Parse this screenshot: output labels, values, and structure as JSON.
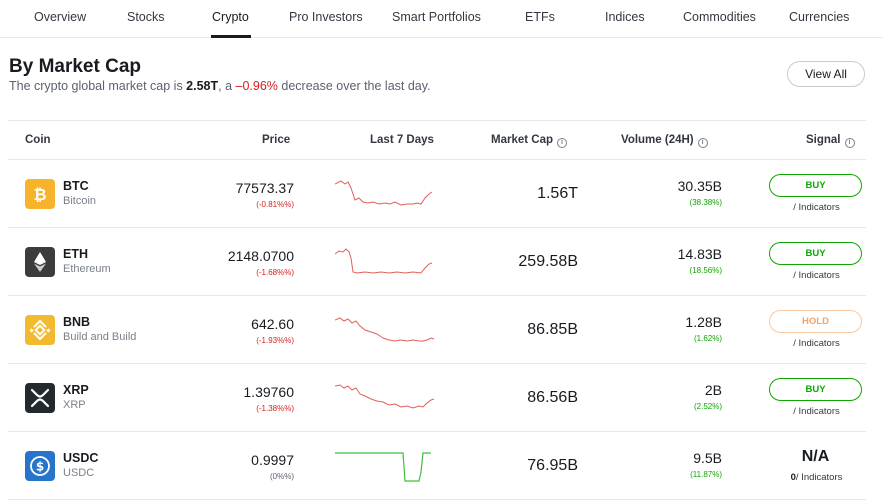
{
  "nav": {
    "items": [
      "Overview",
      "Stocks",
      "Crypto",
      "Pro Investors",
      "Smart Portfolios",
      "ETFs",
      "Indices",
      "Commodities",
      "Currencies"
    ],
    "active": "Crypto"
  },
  "header": {
    "title": "By Market Cap",
    "subtitle_pre": "The crypto global market cap is ",
    "subtitle_value": "2.58T",
    "subtitle_mid": ", a ",
    "subtitle_change": "–0.96%",
    "subtitle_post": " decrease over the last day.",
    "view_all": "View All"
  },
  "table": {
    "columns": {
      "coin": "Coin",
      "price": "Price",
      "last7": "Last 7 Days",
      "mcap": "Market Cap",
      "volume": "Volume (24H)",
      "signal": "Signal"
    },
    "rows": [
      {
        "symbol": "BTC",
        "name": "Bitcoin",
        "price": "77573.37",
        "price_change": "(-0.81%%)",
        "market_cap": "1.56T",
        "volume": "30.35B",
        "volume_change": "(38.38%)",
        "signal": "BUY",
        "indicators_count": "",
        "indicators_label": "/ Indicators",
        "icon": "bitcoin-icon",
        "icon_color": "#f7b32b",
        "trend": "down"
      },
      {
        "symbol": "ETH",
        "name": "Ethereum",
        "price": "2148.0700",
        "price_change": "(-1.68%%)",
        "market_cap": "259.58B",
        "volume": "14.83B",
        "volume_change": "(18.56%)",
        "signal": "BUY",
        "indicators_count": "",
        "indicators_label": "/ Indicators",
        "icon": "ethereum-icon",
        "icon_color": "#3c3c3d",
        "trend": "down"
      },
      {
        "symbol": "BNB",
        "name": "Build and Build",
        "price": "642.60",
        "price_change": "(-1.93%%)",
        "market_cap": "86.85B",
        "volume": "1.28B",
        "volume_change": "(1.62%)",
        "signal": "HOLD",
        "indicators_count": "",
        "indicators_label": "/ Indicators",
        "icon": "bnb-icon",
        "icon_color": "#f3ba2f",
        "trend": "down"
      },
      {
        "symbol": "XRP",
        "name": "XRP",
        "price": "1.39760",
        "price_change": "(-1.38%%)",
        "market_cap": "86.56B",
        "volume": "2B",
        "volume_change": "(2.52%)",
        "signal": "BUY",
        "indicators_count": "",
        "indicators_label": "/ Indicators",
        "icon": "xrp-icon",
        "icon_color": "#23292f",
        "trend": "down"
      },
      {
        "symbol": "USDC",
        "name": "USDC",
        "price": "0.9997",
        "price_change": "(0%%)",
        "market_cap": "76.95B",
        "volume": "9.5B",
        "volume_change": "(11.87%)",
        "signal": "N/A",
        "indicators_count": "0",
        "indicators_label": "/ Indicators",
        "icon": "usdc-icon",
        "icon_color": "#2775ca",
        "trend": "flat"
      }
    ]
  },
  "colors": {
    "negative": "#d91e18",
    "positive": "#0ea600",
    "hold": "#f3a468",
    "spark_down": "#e0605a",
    "spark_flat": "#3fbf3f"
  }
}
